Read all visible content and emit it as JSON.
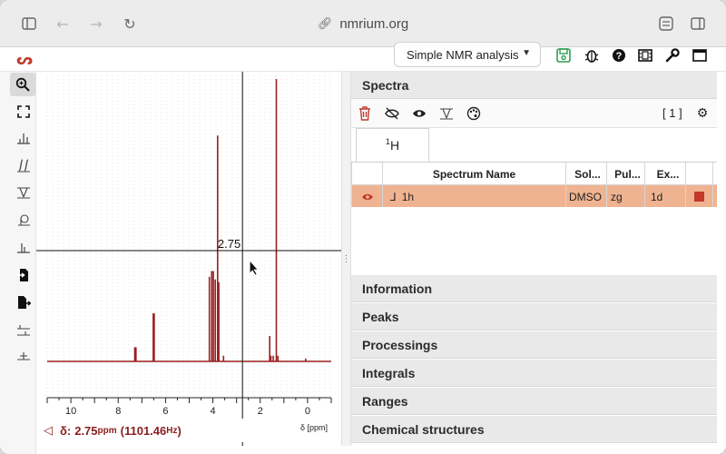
{
  "browser": {
    "url": "nmrium.org",
    "icons": [
      "sidebar-icon",
      "back-arrow-icon",
      "forward-arrow-icon",
      "reload-icon",
      "link-icon",
      "extensions-icon",
      "split-view-icon"
    ]
  },
  "app": {
    "logo": "ᔕ",
    "workspace_label": "Simple NMR analysis",
    "header_icons": [
      "save-icon",
      "bug-icon",
      "help-icon",
      "film-icon",
      "wrench-icon",
      "window-icon"
    ]
  },
  "tools": [
    {
      "name": "zoom-tool",
      "glyph": "⌕",
      "active": true
    },
    {
      "name": "full-view-tool",
      "glyph": "⛶"
    },
    {
      "name": "peak-picking-tool",
      "glyph": "ılı"
    },
    {
      "name": "integral-tool",
      "glyph": "∫∫"
    },
    {
      "name": "baseline-tool",
      "glyph": "⊥"
    },
    {
      "name": "phase-correction-tool",
      "glyph": "φ"
    },
    {
      "name": "range-tool",
      "glyph": "⅄"
    },
    {
      "name": "import-tool",
      "glyph": "⇥"
    },
    {
      "name": "export-tool",
      "glyph": "⇤"
    },
    {
      "name": "fit-tool",
      "glyph": "⇔"
    },
    {
      "name": "exclusion-tool",
      "glyph": "⚲"
    }
  ],
  "chart_data": {
    "type": "line",
    "series": [
      {
        "x": [
          11.0,
          7.3,
          7.25,
          6.52,
          6.48,
          4.15,
          4.05,
          3.98,
          3.9,
          3.8,
          3.75,
          3.55,
          1.6,
          1.55,
          1.45,
          1.32,
          1.25,
          0.08
        ],
        "y": [
          0.0,
          0.05,
          0.05,
          0.17,
          0.17,
          0.3,
          0.32,
          0.32,
          0.29,
          0.8,
          0.28,
          0.02,
          0.09,
          0.02,
          0.02,
          1.0,
          0.02,
          0.01
        ]
      }
    ],
    "xlim": [
      11.0,
      -1.0
    ],
    "xticks": [
      10,
      8,
      6,
      4,
      2,
      0
    ],
    "xlabel": "δ [ppm]",
    "crosshair_value": "2.75",
    "grid": true,
    "line_color": "#9b1f1f"
  },
  "status": {
    "delta_label": "δ:",
    "ppm_value": "2.75",
    "ppm_unit": "ppm",
    "hz_value": "(1101.46",
    "hz_unit": "Hz",
    "hz_close": ")"
  },
  "panel": {
    "spectra_title": "Spectra",
    "count": "[ 1 ]",
    "nucleus_tab_sup": "1",
    "nucleus_tab_label": "H",
    "columns": [
      "",
      "Spectrum Name",
      "Sol...",
      "Pul...",
      "Ex...",
      ""
    ],
    "rows": [
      {
        "name_icon": "⅃",
        "name": "1h",
        "solvent": "DMSO",
        "pulse": "zg",
        "experiment": "1d",
        "color": "#c0392b"
      }
    ],
    "sections": [
      "Information",
      "Peaks",
      "Processings",
      "Integrals",
      "Ranges",
      "Chemical structures"
    ]
  }
}
